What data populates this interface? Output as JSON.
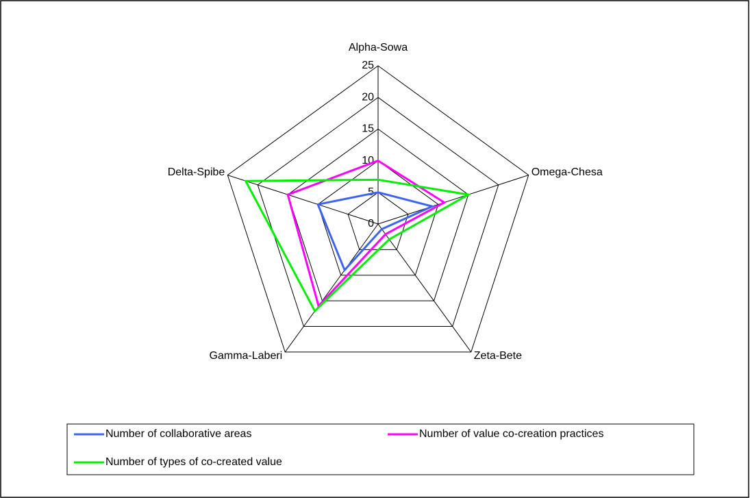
{
  "chart_data": {
    "type": "radar",
    "categories": [
      "Alpha-Sowa",
      "Omega-Chesa",
      "Zeta-Bete",
      "Gamma-Laberi",
      "Delta-Spibe"
    ],
    "series": [
      {
        "name": "Number of collaborative areas",
        "color": "#3c64f0",
        "values": [
          5,
          9,
          1,
          9,
          10
        ]
      },
      {
        "name": "Number of value co-creation practices",
        "color": "#ff00ff",
        "values": [
          10,
          11,
          2,
          16,
          15
        ]
      },
      {
        "name": "Number of types of co-created value",
        "color": "#00f000",
        "values": [
          7,
          15,
          3,
          17,
          22
        ]
      }
    ],
    "ylim": [
      0,
      25
    ],
    "yticks": [
      0,
      5,
      10,
      15,
      20,
      25
    ],
    "grid": true,
    "legend": "bottom"
  }
}
